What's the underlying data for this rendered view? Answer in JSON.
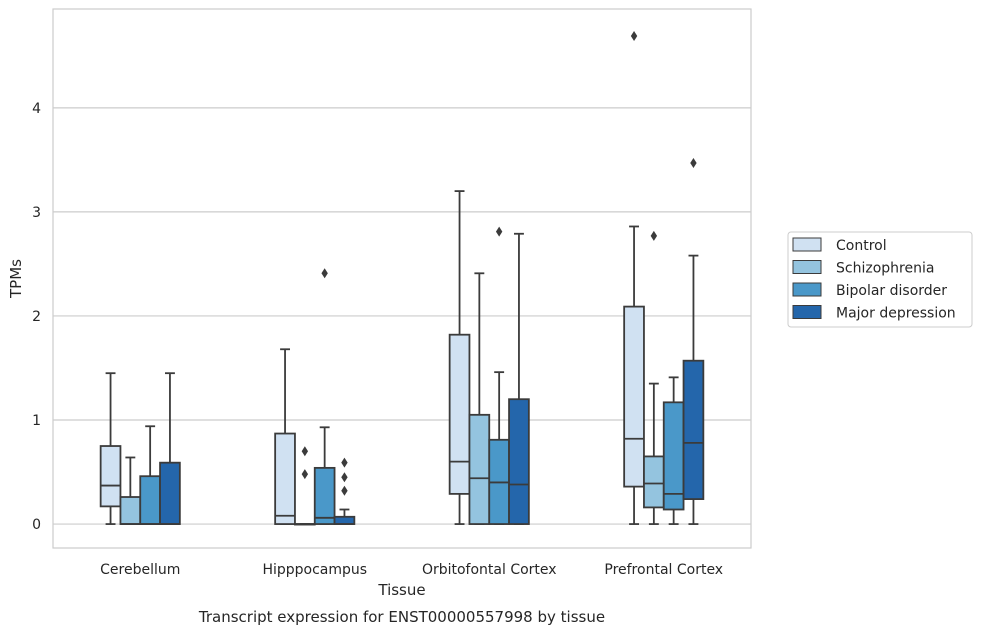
{
  "chart_data": {
    "type": "box",
    "ylabel": "TPMs",
    "xlabel": "Tissue",
    "caption": "Transcript expression for ENST00000557998 by tissue",
    "ylim": [
      -0.23,
      4.95
    ],
    "yticks": [
      "0",
      "1",
      "2",
      "3",
      "4"
    ],
    "categories": [
      "Cerebellum",
      "Hipppocampus",
      "Orbitofontal Cortex",
      "Prefrontal Cortex"
    ],
    "grid": true,
    "legend_position": "right",
    "series": [
      {
        "name": "Control",
        "color": "#d0e1f2",
        "boxes": [
          {
            "low": 0.0,
            "q1": 0.17,
            "median": 0.37,
            "q3": 0.75,
            "high": 1.45,
            "outliers": []
          },
          {
            "low": 0.0,
            "q1": 0.0,
            "median": 0.08,
            "q3": 0.87,
            "high": 1.68,
            "outliers": []
          },
          {
            "low": 0.0,
            "q1": 0.29,
            "median": 0.6,
            "q3": 1.82,
            "high": 3.2,
            "outliers": []
          },
          {
            "low": 0.0,
            "q1": 0.36,
            "median": 0.82,
            "q3": 2.09,
            "high": 2.86,
            "outliers": [
              4.69
            ]
          }
        ]
      },
      {
        "name": "Schizophrenia",
        "color": "#94c4df",
        "boxes": [
          {
            "low": 0.0,
            "q1": 0.0,
            "median": 0.0,
            "q3": 0.26,
            "high": 0.64,
            "outliers": []
          },
          {
            "low": 0.0,
            "q1": 0.0,
            "median": 0.0,
            "q3": 0.0,
            "high": 0.0,
            "outliers": [
              0.48,
              0.7
            ]
          },
          {
            "low": 0.0,
            "q1": 0.0,
            "median": 0.44,
            "q3": 1.05,
            "high": 2.41,
            "outliers": []
          },
          {
            "low": 0.0,
            "q1": 0.16,
            "median": 0.39,
            "q3": 0.65,
            "high": 1.35,
            "outliers": [
              2.77
            ]
          }
        ]
      },
      {
        "name": "Bipolar disorder",
        "color": "#4a98c9",
        "boxes": [
          {
            "low": 0.0,
            "q1": 0.0,
            "median": 0.0,
            "q3": 0.46,
            "high": 0.94,
            "outliers": []
          },
          {
            "low": 0.0,
            "q1": 0.0,
            "median": 0.06,
            "q3": 0.54,
            "high": 0.93,
            "outliers": [
              2.41
            ]
          },
          {
            "low": 0.0,
            "q1": 0.0,
            "median": 0.4,
            "q3": 0.81,
            "high": 1.46,
            "outliers": [
              2.81
            ]
          },
          {
            "low": 0.0,
            "q1": 0.14,
            "median": 0.29,
            "q3": 1.17,
            "high": 1.41,
            "outliers": []
          }
        ]
      },
      {
        "name": "Major depression",
        "color": "#2466ab",
        "boxes": [
          {
            "low": 0.0,
            "q1": 0.0,
            "median": 0.0,
            "q3": 0.59,
            "high": 1.45,
            "outliers": []
          },
          {
            "low": 0.0,
            "q1": 0.0,
            "median": 0.0,
            "q3": 0.07,
            "high": 0.14,
            "outliers": [
              0.32,
              0.45,
              0.59
            ]
          },
          {
            "low": 0.0,
            "q1": 0.0,
            "median": 0.38,
            "q3": 1.2,
            "high": 2.79,
            "outliers": []
          },
          {
            "low": 0.0,
            "q1": 0.24,
            "median": 0.78,
            "q3": 1.57,
            "high": 2.58,
            "outliers": [
              3.47
            ]
          }
        ]
      }
    ]
  }
}
